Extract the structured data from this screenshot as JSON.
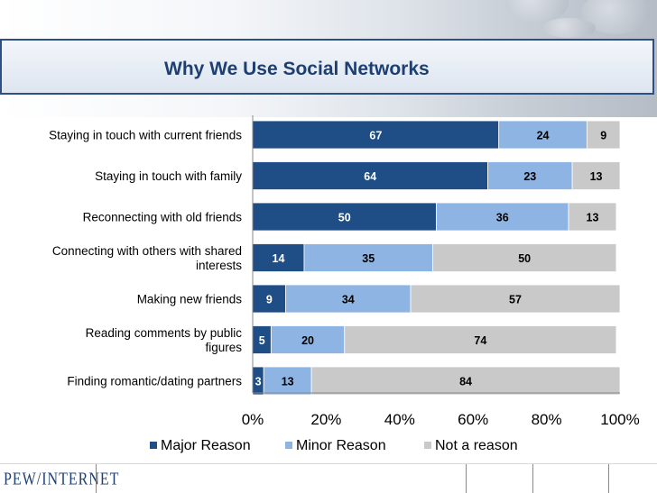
{
  "title": "Why We Use Social Networks",
  "footer_logo": "PEW/INTERNET",
  "colors": {
    "major": "#1f4e87",
    "minor": "#8db4e2",
    "not": "#c9c9c9",
    "title": "#1d3f72"
  },
  "chart_data": {
    "type": "bar",
    "orientation": "horizontal",
    "stacked": true,
    "percent_stacked": true,
    "title": "Why We Use Social Networks",
    "categories": [
      [
        "Staying in touch with current friends"
      ],
      [
        "Staying in touch with family"
      ],
      [
        "Reconnecting with old friends"
      ],
      [
        "Connecting with others with shared",
        "interests"
      ],
      [
        "Making new friends"
      ],
      [
        "Reading comments by public",
        "figures"
      ],
      [
        "Finding romantic/dating partners"
      ]
    ],
    "series": [
      {
        "name": "Major Reason",
        "color": "#1f4e87",
        "label_color": "#ffffff",
        "values": [
          67,
          64,
          50,
          14,
          9,
          5,
          3
        ]
      },
      {
        "name": "Minor Reason",
        "color": "#8db4e2",
        "label_color": "#000000",
        "values": [
          24,
          23,
          36,
          35,
          34,
          20,
          13
        ]
      },
      {
        "name": "Not a reason",
        "color": "#c9c9c9",
        "label_color": "#000000",
        "values": [
          9,
          13,
          13,
          50,
          57,
          74,
          84
        ]
      }
    ],
    "xticks": [
      "0%",
      "20%",
      "40%",
      "60%",
      "80%",
      "100%"
    ],
    "xlim": [
      0,
      100
    ],
    "legend_position": "bottom",
    "grid": false
  }
}
